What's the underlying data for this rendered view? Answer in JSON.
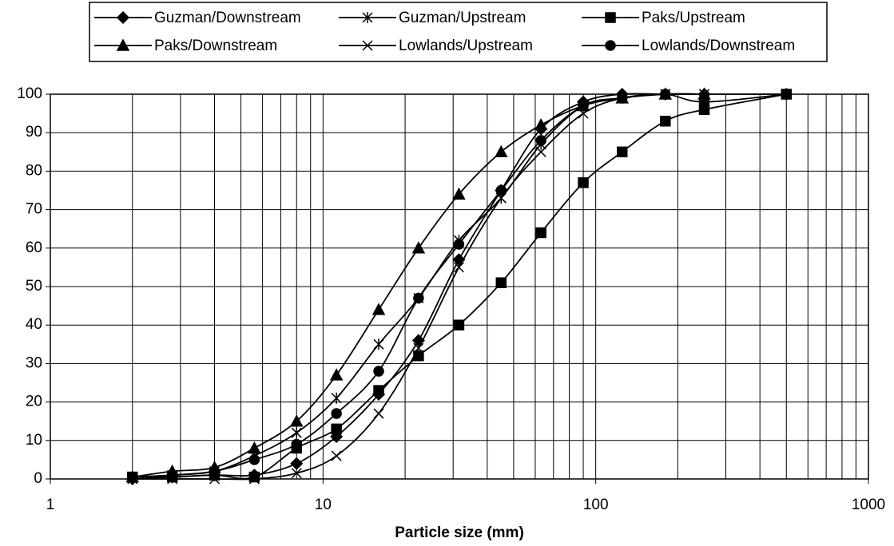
{
  "chart_data": {
    "type": "line",
    "xlabel": "Particle size (mm)",
    "xscale": "log",
    "xlim": [
      1,
      1000
    ],
    "xticks": [
      1,
      10,
      100,
      1000
    ],
    "xminorticks": [
      2,
      3,
      4,
      5,
      6,
      7,
      8,
      9,
      20,
      30,
      40,
      50,
      60,
      70,
      80,
      90,
      200,
      300,
      400,
      500,
      600,
      700,
      800,
      900
    ],
    "ylim": [
      0,
      100
    ],
    "yticks": [
      0,
      10,
      20,
      30,
      40,
      50,
      60,
      70,
      80,
      90,
      100
    ],
    "grid": true,
    "legend": "top",
    "color": "#000000",
    "series": [
      {
        "name": "Guzman/Downstream",
        "marker": "diamond",
        "x": [
          2,
          2.8,
          4,
          5.6,
          8,
          11.2,
          16,
          22.4,
          31.5,
          45,
          63,
          90,
          125,
          180,
          250,
          500
        ],
        "values": [
          0,
          0.5,
          1,
          1,
          4,
          11,
          22,
          36,
          57,
          75,
          91,
          98,
          100,
          100,
          100,
          100
        ]
      },
      {
        "name": "Guzman/Upstream",
        "marker": "star",
        "x": [
          2,
          2.8,
          4,
          5.6,
          8,
          11.2,
          16,
          22.4,
          31.5,
          45,
          63,
          90,
          125,
          180,
          250
        ],
        "values": [
          0.5,
          1,
          2,
          6,
          12,
          21,
          35,
          47,
          62,
          73,
          87,
          97,
          99,
          100,
          100
        ]
      },
      {
        "name": "Paks/Upstream",
        "marker": "square",
        "x": [
          2,
          2.8,
          4,
          5.6,
          8,
          11.2,
          16,
          22.4,
          31.5,
          45,
          63,
          90,
          125,
          180,
          250,
          500
        ],
        "values": [
          0.5,
          0.5,
          1,
          0.5,
          8,
          13,
          23,
          32,
          40,
          51,
          64,
          77,
          85,
          93,
          96,
          100
        ]
      },
      {
        "name": "Paks/Downstream",
        "marker": "triangle",
        "x": [
          2,
          2.8,
          4,
          5.6,
          8,
          11.2,
          16,
          22.4,
          31.5,
          45,
          63,
          90,
          125,
          180,
          250
        ],
        "values": [
          0.5,
          2,
          3,
          8,
          15,
          27,
          44,
          60,
          74,
          85,
          92,
          97,
          99,
          100,
          100
        ]
      },
      {
        "name": "Lowlands/Upstream",
        "marker": "cross",
        "x": [
          2,
          2.8,
          4,
          5.6,
          8,
          11.2,
          16,
          22.4,
          31.5,
          45,
          63,
          90,
          125,
          180,
          250
        ],
        "values": [
          0,
          0,
          0,
          0,
          1.5,
          6,
          17,
          34,
          55,
          73,
          85,
          95,
          99,
          100,
          100
        ]
      },
      {
        "name": "Lowlands/Downstream",
        "marker": "circle",
        "x": [
          2,
          2.8,
          4,
          5.6,
          8,
          11.2,
          16,
          22.4,
          31.5,
          45,
          63,
          90,
          125,
          180,
          250,
          500
        ],
        "values": [
          0.5,
          1,
          2,
          5,
          9,
          17,
          28,
          47,
          61,
          75,
          88,
          97,
          99,
          100,
          98,
          100
        ]
      }
    ]
  }
}
